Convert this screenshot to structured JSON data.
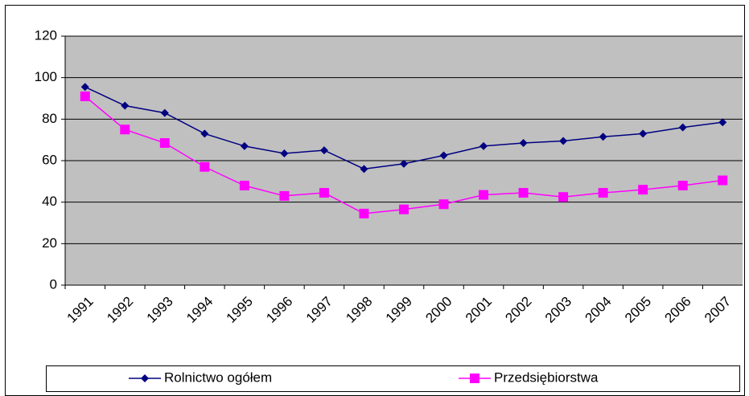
{
  "chart_data": {
    "type": "line",
    "categories": [
      "1991",
      "1992",
      "1993",
      "1994",
      "1995",
      "1996",
      "1997",
      "1998",
      "1999",
      "2000",
      "2001",
      "2002",
      "2003",
      "2004",
      "2005",
      "2006",
      "2007"
    ],
    "series": [
      {
        "name": "Rolnictwo ogółem",
        "color": "#000080",
        "marker": "diamond",
        "values": [
          95.5,
          86.5,
          83,
          73,
          67,
          63.5,
          65,
          56,
          58.5,
          62.5,
          67,
          68.5,
          69.5,
          71.5,
          73,
          76,
          78.5
        ]
      },
      {
        "name": "Przedsiębiorstwa",
        "color": "#ff00ff",
        "marker": "square",
        "values": [
          91,
          75,
          68.5,
          57,
          48,
          43,
          44.5,
          34.5,
          36.5,
          39,
          43.5,
          44.5,
          42.5,
          44.5,
          46,
          48,
          50.5
        ]
      }
    ],
    "ylim": [
      0,
      120
    ],
    "yticks": [
      0,
      20,
      40,
      60,
      80,
      100,
      120
    ],
    "grid": true,
    "legend": "bottom"
  }
}
